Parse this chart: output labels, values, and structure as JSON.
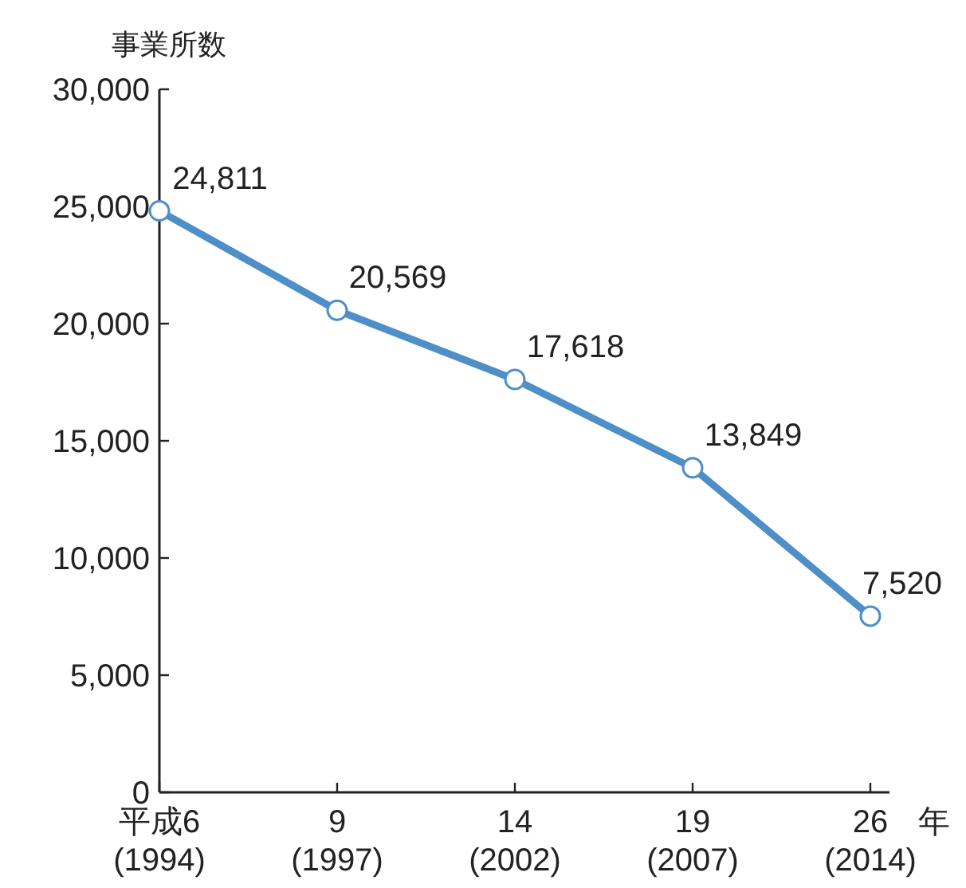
{
  "chart_data": {
    "type": "line",
    "ylabel": "事業所数",
    "xlabel": "年",
    "categories": [
      "平成6\n(1994)",
      "9\n(1997)",
      "14\n(2002)",
      "19\n(2007)",
      "26\n(2014)"
    ],
    "series": [
      {
        "color": "#4f8fc8",
        "values": [
          24811,
          20569,
          17618,
          13849,
          7520
        ]
      }
    ],
    "ylim": [
      0,
      30000
    ],
    "yticks": [
      {
        "value": 0,
        "label": "0"
      },
      {
        "value": 5000,
        "label": "5,000"
      },
      {
        "value": 10000,
        "label": "10,000"
      },
      {
        "value": 15000,
        "label": "15,000"
      },
      {
        "value": 20000,
        "label": "20,000"
      },
      {
        "value": 25000,
        "label": "25,000"
      },
      {
        "value": 30000,
        "label": "30,000"
      }
    ],
    "value_labels": [
      "24,811",
      "20,569",
      "17,618",
      "13,849",
      "7,520"
    ],
    "marker": "circle",
    "grid": false
  }
}
